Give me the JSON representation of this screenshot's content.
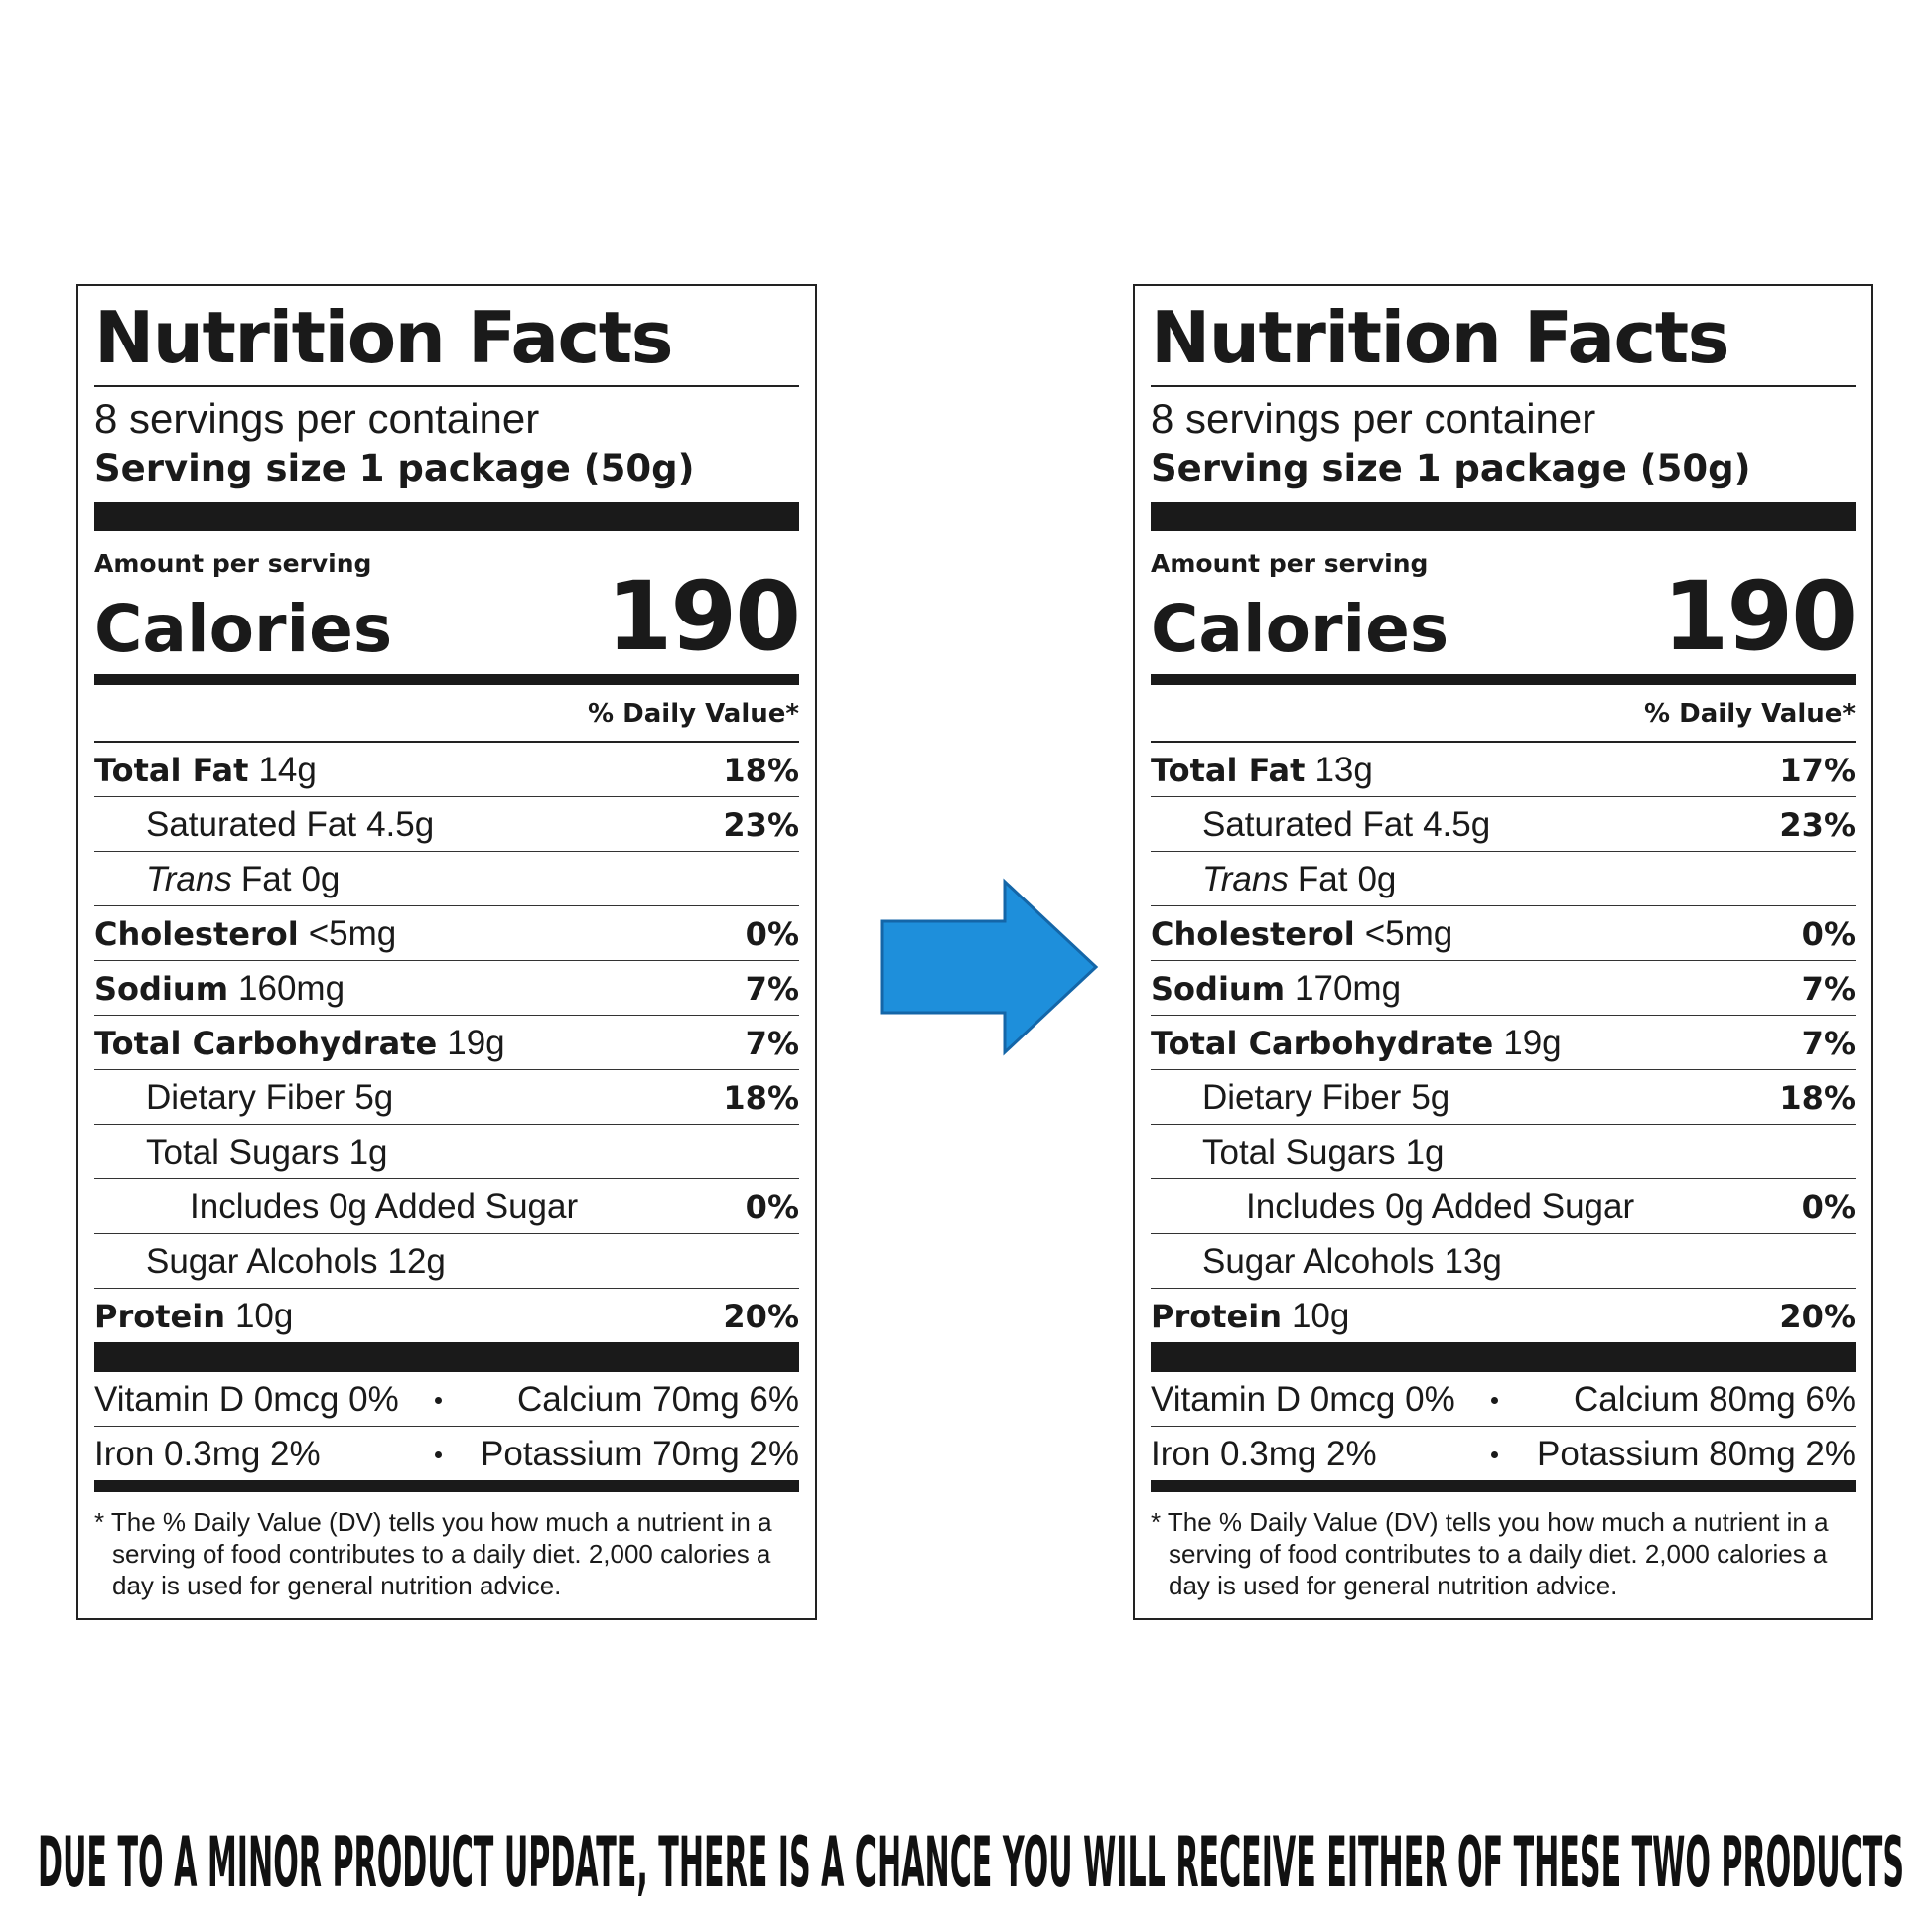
{
  "labels": [
    {
      "title": "Nutrition Facts",
      "servings": "8 servings per container",
      "serving_size": "Serving size 1 package (50g)",
      "amount_per_serving": "Amount per serving",
      "calories_label": "Calories",
      "calories": "190",
      "dv_header": "% Daily Value*",
      "rows": [
        {
          "name": "Total Fat",
          "amount": "14g",
          "dv": "18%"
        },
        {
          "name": "Saturated Fat",
          "amount": "4.5g",
          "dv": "23%"
        },
        {
          "name_italic": "Trans",
          "name": "Fat",
          "amount": "0g"
        },
        {
          "name": "Cholesterol",
          "amount": "<5mg",
          "dv": "0%"
        },
        {
          "name": "Sodium",
          "amount": "160mg",
          "dv": "7%"
        },
        {
          "name": "Total Carbohydrate",
          "amount": "19g",
          "dv": "7%"
        },
        {
          "name": "Dietary Fiber",
          "amount": "5g",
          "dv": "18%"
        },
        {
          "name": "Total Sugars",
          "amount": "1g"
        },
        {
          "name": "Includes 0g Added Sugar",
          "dv": "0%"
        },
        {
          "name": "Sugar Alcohols",
          "amount": "12g"
        },
        {
          "name": "Protein",
          "amount": "10g",
          "dv": "20%"
        }
      ],
      "vitamins": [
        [
          "Vitamin D 0mcg 0%",
          "Calcium 70mg 6%"
        ],
        [
          "Iron 0.3mg 2%",
          "Potassium 70mg 2%"
        ]
      ],
      "footnote": "* The % Daily Value (DV) tells you how much a nutrient in a serving of food contributes to a daily diet. 2,000 calories a day is used for general nutrition advice."
    },
    {
      "title": "Nutrition Facts",
      "servings": "8 servings per container",
      "serving_size": "Serving size 1 package (50g)",
      "amount_per_serving": "Amount per serving",
      "calories_label": "Calories",
      "calories": "190",
      "dv_header": "% Daily Value*",
      "rows": [
        {
          "name": "Total Fat",
          "amount": "13g",
          "dv": "17%"
        },
        {
          "name": "Saturated Fat",
          "amount": "4.5g",
          "dv": "23%"
        },
        {
          "name_italic": "Trans",
          "name": "Fat",
          "amount": "0g"
        },
        {
          "name": "Cholesterol",
          "amount": "<5mg",
          "dv": "0%"
        },
        {
          "name": "Sodium",
          "amount": "170mg",
          "dv": "7%"
        },
        {
          "name": "Total Carbohydrate",
          "amount": "19g",
          "dv": "7%"
        },
        {
          "name": "Dietary Fiber",
          "amount": "5g",
          "dv": "18%"
        },
        {
          "name": "Total Sugars",
          "amount": "1g"
        },
        {
          "name": "Includes 0g Added Sugar",
          "dv": "0%"
        },
        {
          "name": "Sugar Alcohols",
          "amount": "13g"
        },
        {
          "name": "Protein",
          "amount": "10g",
          "dv": "20%"
        }
      ],
      "vitamins": [
        [
          "Vitamin D 0mcg 0%",
          "Calcium 80mg 6%"
        ],
        [
          "Iron 0.3mg 2%",
          "Potassium 80mg 2%"
        ]
      ],
      "footnote": "* The % Daily Value (DV) tells you how much a nutrient in a serving of food contributes to a daily diet. 2,000 calories a day is used for general nutrition advice."
    }
  ],
  "caption": "DUE TO A MINOR PRODUCT UPDATE, THERE IS A CHANCE YOU WILL RECEIVE EITHER OF THESE TWO PRODUCTS"
}
